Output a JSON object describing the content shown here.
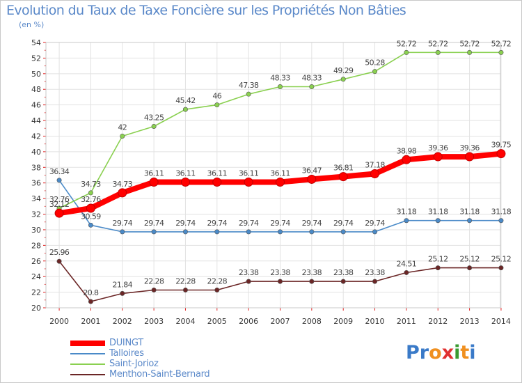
{
  "title": "Evolution du Taux de Taxe Foncière sur les Propriétés Non Bâties",
  "unit_label": "(en %)",
  "logo": {
    "text": "Proxiti",
    "letter_colors": [
      "#3a7ac8",
      "#3a7ac8",
      "#f09020",
      "#e03030",
      "#3a9a30",
      "#f09020",
      "#3a7ac8"
    ]
  },
  "chart_data": {
    "type": "line",
    "title": "Evolution du Taux de Taxe Foncière sur les Propriétés Non Bâties",
    "ylabel": "(en %)",
    "xlabel": "",
    "x": [
      "2000",
      "2001",
      "2002",
      "2003",
      "2004",
      "2005",
      "2006",
      "2007",
      "2008",
      "2009",
      "2010",
      "2011",
      "2012",
      "2013",
      "2014"
    ],
    "yticks": [
      20,
      22,
      24,
      26,
      28,
      30,
      32,
      34,
      36,
      38,
      40,
      42,
      44,
      46,
      48,
      50,
      52,
      54
    ],
    "ylim": [
      20,
      54
    ],
    "grid": true,
    "legend_position": "bottom-left",
    "series": [
      {
        "name": "DUINGT",
        "color": "#ff0000",
        "emphasis": true,
        "values": [
          32.12,
          32.76,
          34.73,
          36.11,
          36.11,
          36.11,
          36.11,
          36.11,
          36.47,
          36.81,
          37.18,
          38.98,
          39.36,
          39.36,
          39.75
        ],
        "labels": [
          "32.12",
          "32.76",
          "34.73",
          "36.11",
          "36.11",
          "36.11",
          "36.11",
          "36.11",
          "36.47",
          "36.81",
          "37.18",
          "38.98",
          "39.36",
          "39.36",
          "39.75"
        ]
      },
      {
        "name": "Talloires",
        "color": "#4a8ac8",
        "emphasis": false,
        "values": [
          36.34,
          30.59,
          29.74,
          29.74,
          29.74,
          29.74,
          29.74,
          29.74,
          29.74,
          29.74,
          29.74,
          31.18,
          31.18,
          31.18,
          31.18
        ],
        "labels": [
          "36.34",
          "30.59",
          "29.74",
          "29.74",
          "29.74",
          "29.74",
          "29.74",
          "29.74",
          "29.74",
          "29.74",
          "29.74",
          "31.18",
          "31.18",
          "31.18",
          "31.18"
        ]
      },
      {
        "name": "Saint-Jorioz",
        "color": "#8ad050",
        "emphasis": false,
        "values": [
          32.76,
          34.73,
          42,
          43.25,
          45.42,
          46,
          47.38,
          48.33,
          48.33,
          49.29,
          50.28,
          52.72,
          52.72,
          52.72,
          52.72
        ],
        "labels": [
          "32.76",
          "34.73",
          "42",
          "43.25",
          "45.42",
          "46",
          "47.38",
          "48.33",
          "48.33",
          "49.29",
          "50.28",
          "52.72",
          "52.72",
          "52.72",
          "52.72"
        ]
      },
      {
        "name": "Menthon-Saint-Bernard",
        "color": "#6b2626",
        "emphasis": false,
        "values": [
          25.96,
          20.8,
          21.84,
          22.28,
          22.28,
          22.28,
          23.38,
          23.38,
          23.38,
          23.38,
          23.38,
          24.51,
          25.12,
          25.12,
          25.12
        ],
        "labels": [
          "25.96",
          "20.8",
          "21.84",
          "22.28",
          "22.28",
          "22.28",
          "23.38",
          "23.38",
          "23.38",
          "23.38",
          "23.38",
          "24.51",
          "25.12",
          "25.12",
          "25.12"
        ]
      }
    ]
  }
}
